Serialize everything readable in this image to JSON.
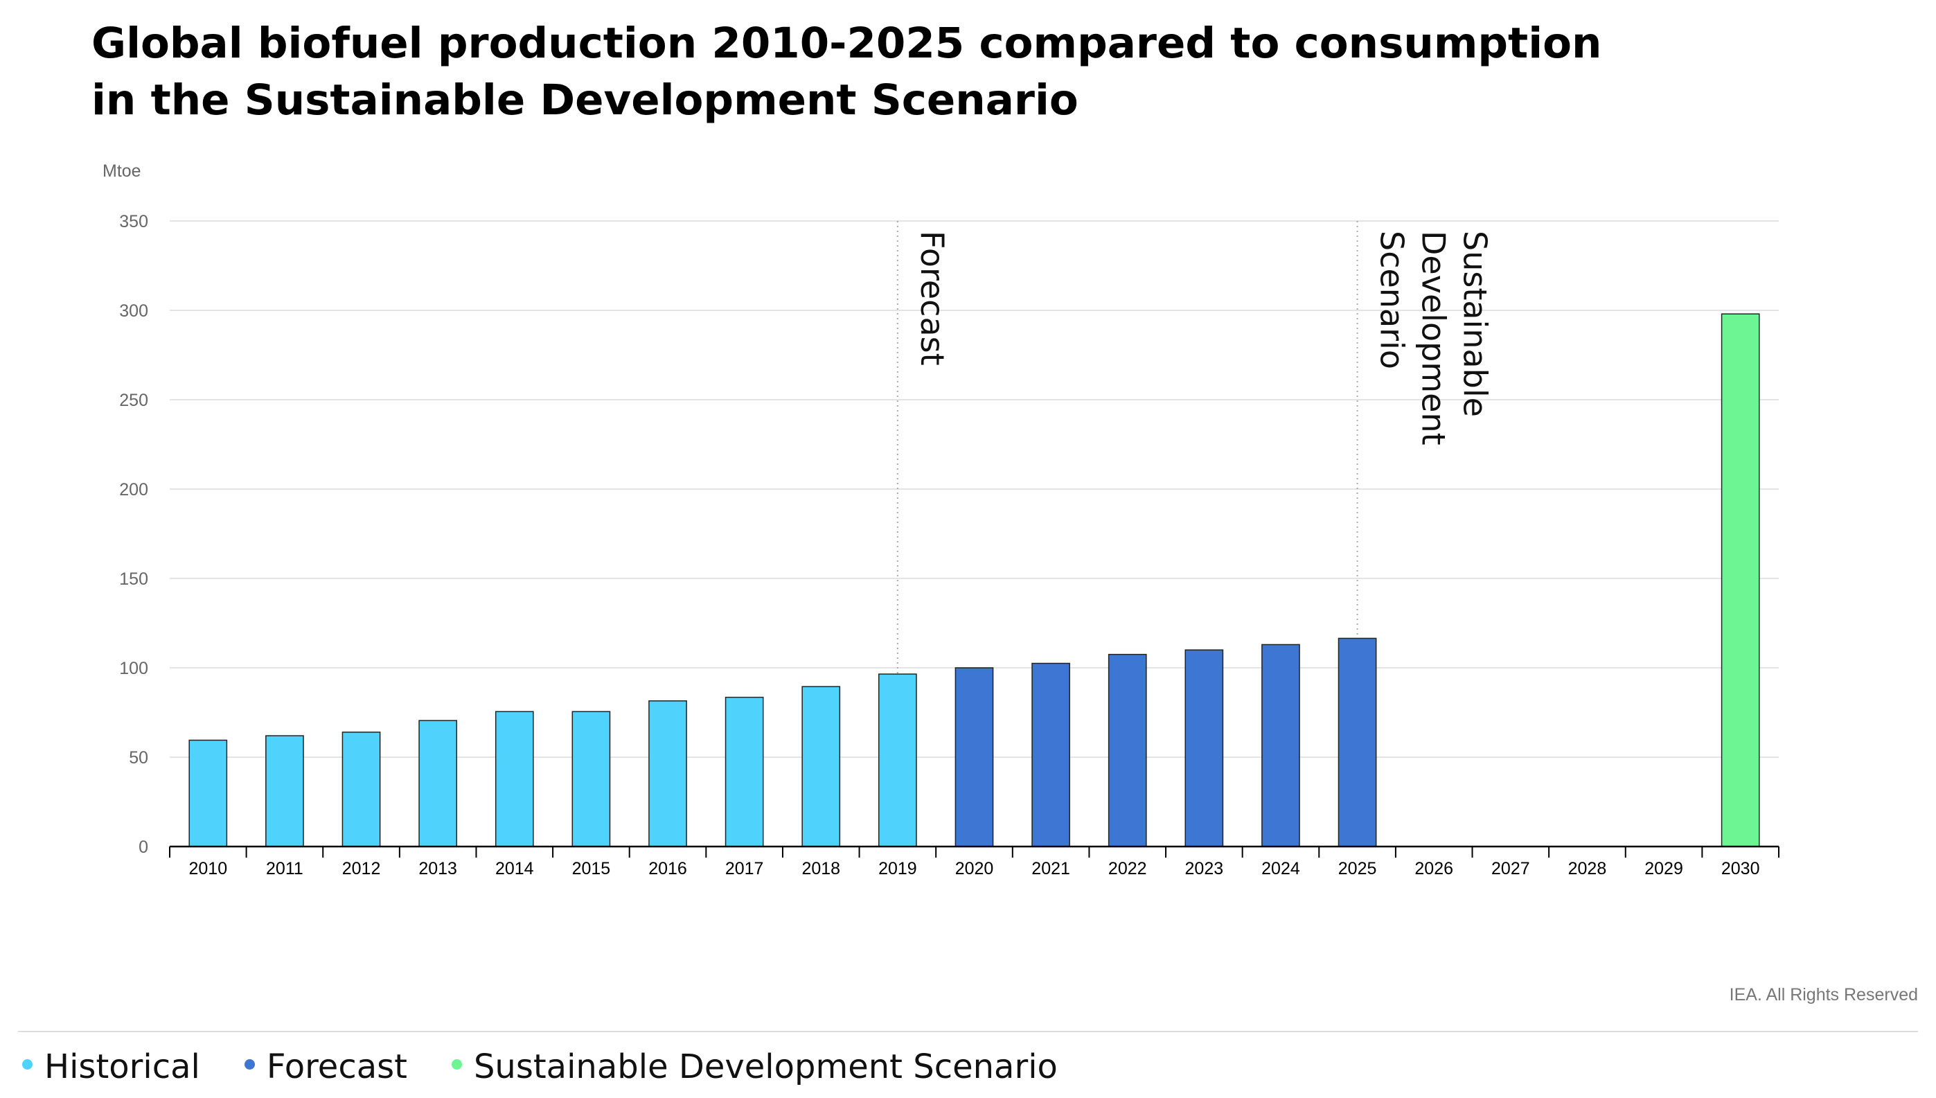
{
  "title_lines": [
    "Global biofuel production 2010-2025 compared to consumption",
    "in the Sustainable Development Scenario"
  ],
  "copyright": "IEA. All Rights Reserved",
  "colors": {
    "Historical": "#4fd3fc",
    "Forecast": "#3d76d3",
    "Sustainable Development Scenario": "#6ef593"
  },
  "legend": [
    {
      "label": "Historical",
      "color": "#4fd3fc"
    },
    {
      "label": "Forecast",
      "color": "#3d76d3"
    },
    {
      "label": "Sustainable Development Scenario",
      "color": "#6ef593"
    }
  ],
  "chart_data": {
    "type": "bar",
    "title": "Global biofuel production 2010-2025 compared to consumption in the Sustainable Development Scenario",
    "ylabel": "Mtoe",
    "xlabel": "",
    "ylim": [
      0,
      350
    ],
    "yticks": [
      0,
      50,
      100,
      150,
      200,
      250,
      300,
      350
    ],
    "grid": true,
    "legend_position": "bottom",
    "categories": [
      "2010",
      "2011",
      "2012",
      "2013",
      "2014",
      "2015",
      "2016",
      "2017",
      "2018",
      "2019",
      "2020",
      "2021",
      "2022",
      "2023",
      "2024",
      "2025",
      "2026",
      "2027",
      "2028",
      "2029",
      "2030"
    ],
    "series": [
      {
        "name": "Historical",
        "values": [
          59.5,
          62,
          64,
          70.5,
          75.5,
          75.5,
          81.5,
          83.5,
          89.5,
          96.5,
          null,
          null,
          null,
          null,
          null,
          null,
          null,
          null,
          null,
          null,
          null
        ]
      },
      {
        "name": "Forecast",
        "values": [
          null,
          null,
          null,
          null,
          null,
          null,
          null,
          null,
          null,
          null,
          100,
          102.5,
          107.5,
          110,
          113,
          116.5,
          null,
          null,
          null,
          null,
          null
        ]
      },
      {
        "name": "Sustainable Development Scenario",
        "values": [
          null,
          null,
          null,
          null,
          null,
          null,
          null,
          null,
          null,
          null,
          null,
          null,
          null,
          null,
          null,
          null,
          null,
          null,
          null,
          null,
          298
        ]
      }
    ],
    "annotations": [
      {
        "at": "2019",
        "text": "Forecast"
      },
      {
        "at": "2025",
        "text": "Sustainable Development Scenario",
        "lines": [
          "Sustainable",
          "Development",
          "Scenario"
        ]
      }
    ]
  }
}
